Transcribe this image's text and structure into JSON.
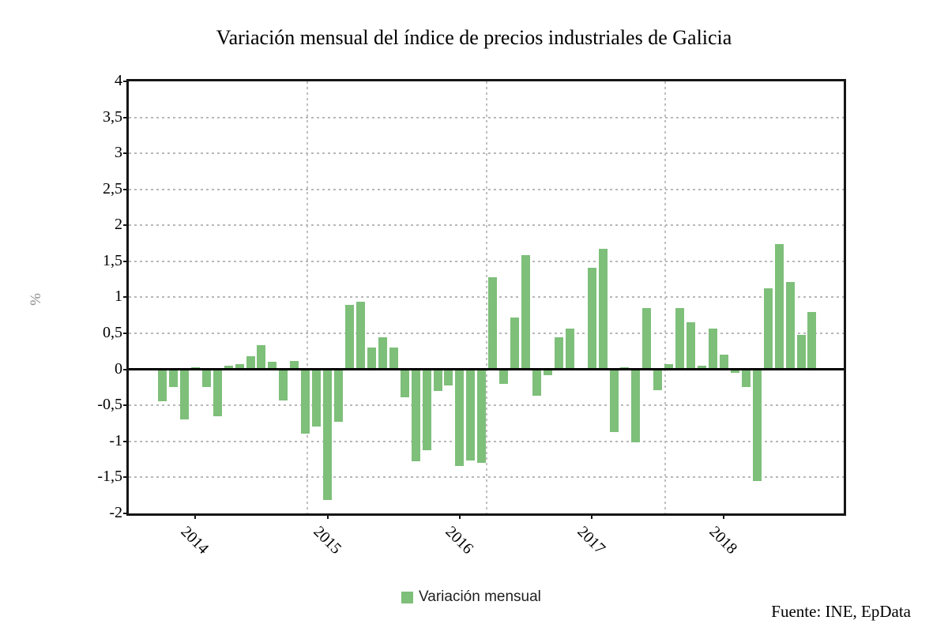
{
  "chart": {
    "title": "Variación mensual del índice de precios industriales de Galicia",
    "ylabel": "%",
    "legend_label": "Variación mensual",
    "source": "Fuente: INE, EpData",
    "bar_color": "#7ebf7a"
  },
  "chart_data": {
    "type": "bar",
    "title": "Variación mensual del índice de precios industriales de Galicia",
    "xlabel": "",
    "ylabel": "%",
    "ylim": [
      -2,
      4
    ],
    "ytick_step": 0.5,
    "ytick_labels": [
      "4",
      "3,5",
      "3",
      "2,5",
      "2",
      "1,5",
      "1",
      "0,5",
      "0",
      "-0,5",
      "-1",
      "-1,5",
      "-2"
    ],
    "xtick_labels": [
      "2014",
      "2015",
      "2016",
      "2017",
      "2018"
    ],
    "grid": true,
    "legend_position": "bottom",
    "series_name": "Variación mensual",
    "source": "Fuente: INE, EpData",
    "x": [
      "2013-10",
      "2013-11",
      "2013-12",
      "2014-01",
      "2014-02",
      "2014-03",
      "2014-04",
      "2014-05",
      "2014-06",
      "2014-07",
      "2014-08",
      "2014-09",
      "2014-10",
      "2014-11",
      "2014-12",
      "2015-01",
      "2015-02",
      "2015-03",
      "2015-04",
      "2015-05",
      "2015-06",
      "2015-07",
      "2015-08",
      "2015-09",
      "2015-10",
      "2015-11",
      "2015-12",
      "2016-01",
      "2016-02",
      "2016-03",
      "2016-04",
      "2016-05",
      "2016-06",
      "2016-07",
      "2016-08",
      "2016-09",
      "2016-10",
      "2016-11",
      "2016-12",
      "2017-01",
      "2017-02",
      "2017-03",
      "2017-04",
      "2017-05",
      "2017-06",
      "2017-07",
      "2017-08",
      "2017-09",
      "2017-10",
      "2017-11",
      "2017-12",
      "2018-01",
      "2018-02",
      "2018-03",
      "2018-04",
      "2018-05",
      "2018-06",
      "2018-07",
      "2018-08",
      "2018-09"
    ],
    "values": [
      -0.45,
      -0.25,
      -0.7,
      0.03,
      -0.25,
      -0.65,
      0.05,
      0.07,
      0.18,
      0.34,
      0.1,
      -0.43,
      0.11,
      -0.9,
      -0.8,
      -1.82,
      -0.73,
      0.89,
      0.94,
      0.3,
      0.45,
      0.3,
      -0.39,
      -1.28,
      -1.12,
      -0.3,
      -0.22,
      -1.35,
      -1.27,
      -1.3,
      1.28,
      -0.2,
      0.72,
      1.59,
      -0.37,
      -0.08,
      0.45,
      0.57,
      0,
      1.41,
      1.67,
      -0.87,
      0.03,
      -1.01,
      0.85,
      -0.29,
      0.07,
      0.85,
      0.65,
      0.05,
      0.57,
      0.2,
      -0.05,
      -0.25,
      -1.55,
      1.12,
      1.74,
      1.21,
      0.48,
      0.8
    ]
  }
}
